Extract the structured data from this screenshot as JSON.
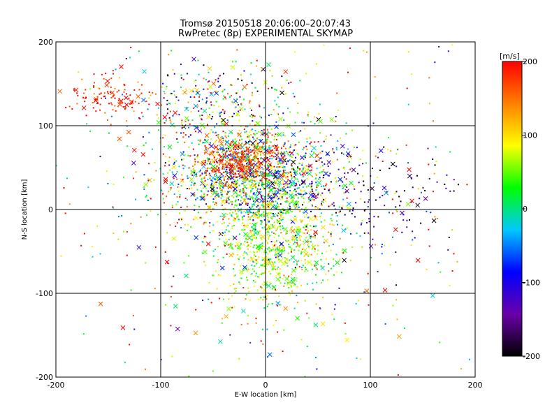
{
  "chart_data": {
    "type": "scatter",
    "title": "Tromsø 20150518 20:06:00–20:07:43",
    "subtitle": "RwPretec (8p) EXPERIMENTAL SKYMAP",
    "xlabel": "E-W location [km]",
    "ylabel": "N-S location [km]",
    "xlim": [
      -200,
      200
    ],
    "ylim": [
      -200,
      200
    ],
    "xticks": [
      "-200",
      "-100",
      "0",
      "100",
      "200"
    ],
    "yticks": [
      "-200",
      "-100",
      "0",
      "100",
      "200"
    ],
    "grid": true,
    "colorbar": {
      "label": "[m/s]",
      "range": [
        -200,
        200
      ],
      "ticks": [
        "200",
        "100",
        "0",
        "-100",
        "-200"
      ],
      "colors": [
        "#000000",
        "#6a00a8",
        "#0000ff",
        "#00c8ff",
        "#00ff00",
        "#ffff00",
        "#ff8000",
        "#ff0000"
      ]
    },
    "markers": [
      "dot",
      "cross"
    ],
    "clusters": [
      {
        "cx": -10,
        "cy": 40,
        "sx": 40,
        "sy": 30,
        "n": 1300,
        "velocity_mean": 20,
        "velocity_sd": 110
      },
      {
        "cx": -25,
        "cy": 58,
        "sx": 22,
        "sy": 14,
        "n": 360,
        "velocity_mean": 170,
        "velocity_sd": 40
      },
      {
        "cx": 10,
        "cy": -40,
        "sx": 30,
        "sy": 38,
        "n": 750,
        "velocity_mean": 60,
        "velocity_sd": 45
      },
      {
        "cx": -50,
        "cy": 125,
        "sx": 42,
        "sy": 30,
        "n": 300,
        "velocity_mean": 10,
        "velocity_sd": 130
      },
      {
        "cx": -150,
        "cy": 135,
        "sx": 20,
        "sy": 12,
        "n": 110,
        "velocity_mean": 185,
        "velocity_sd": 25
      },
      {
        "cx": 80,
        "cy": 15,
        "sx": 45,
        "sy": 30,
        "n": 190,
        "velocity_mean": -140,
        "velocity_sd": 60
      },
      {
        "cx": 0,
        "cy": 0,
        "sx": 120,
        "sy": 110,
        "n": 520,
        "velocity_mean": 80,
        "velocity_sd": 120
      }
    ]
  }
}
